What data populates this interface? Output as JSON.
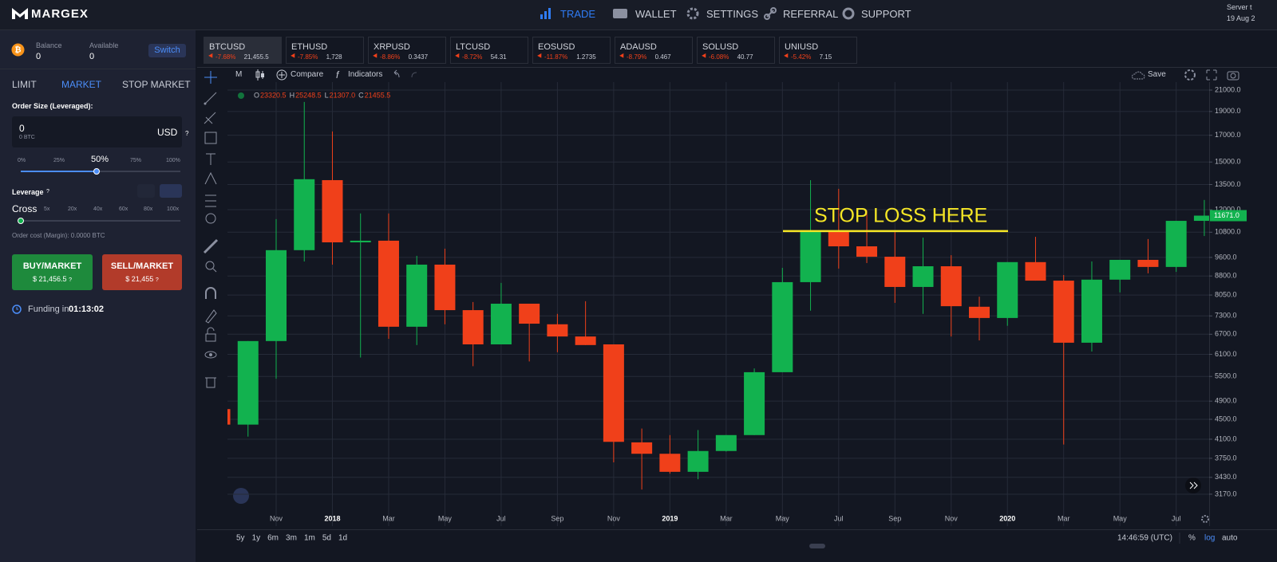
{
  "header": {
    "logo": "MARGEX",
    "nav": [
      "TRADE",
      "WALLET",
      "SETTINGS",
      "REFERRAL",
      "SUPPORT"
    ],
    "server_label": "Server t",
    "server_date": "19 Aug 2"
  },
  "account": {
    "balance_label": "Balance",
    "balance": "0",
    "available_label": "Available",
    "available": "0",
    "switch": "Switch"
  },
  "order": {
    "tabs": [
      "LIMIT",
      "MARKET",
      "STOP MARKET"
    ],
    "size_label": "Order Size (Leveraged):",
    "size": "0",
    "size_btc": "0 BTC",
    "currency": "USD",
    "help": "?",
    "size_marks": [
      "0%",
      "25%",
      "50%",
      "75%",
      "100%"
    ],
    "leverage_label": "Leverage",
    "leverage_marks": [
      "Cross",
      "5x",
      "20x",
      "40x",
      "60x",
      "80x",
      "100x"
    ],
    "order_cost": "Order cost (Margin): 0.0000 BTC",
    "buy": "BUY/MARKET",
    "buy_price": "$ 21,456.5",
    "sell": "SELL/MARKET",
    "sell_price": "$ 21,455",
    "funding_label": "Funding in",
    "funding_time": "01:13:02"
  },
  "tickers": [
    {
      "symbol": "BTCUSD",
      "change": "-7.68%",
      "price": "21,455.5"
    },
    {
      "symbol": "ETHUSD",
      "change": "-7.85%",
      "price": "1,728"
    },
    {
      "symbol": "XRPUSD",
      "change": "-8.86%",
      "price": "0.3437"
    },
    {
      "symbol": "LTCUSD",
      "change": "-8.72%",
      "price": "54.31"
    },
    {
      "symbol": "EOSUSD",
      "change": "-11.87%",
      "price": "1.2735"
    },
    {
      "symbol": "ADAUSD",
      "change": "-8.79%",
      "price": "0.467"
    },
    {
      "symbol": "SOLUSD",
      "change": "-6.08%",
      "price": "40.77"
    },
    {
      "symbol": "UNIUSD",
      "change": "-5.42%",
      "price": "7.15"
    }
  ],
  "toolbar": {
    "interval": "M",
    "compare": "Compare",
    "indicators": "Indicators",
    "save": "Save"
  },
  "legend": {
    "ohlc": [
      {
        "label": "O",
        "value": "23320.5"
      },
      {
        "label": "H",
        "value": "25248.5"
      },
      {
        "label": "L",
        "value": "21307.0"
      },
      {
        "label": "C",
        "value": "21455.5"
      }
    ]
  },
  "chart_data": {
    "type": "candlestick",
    "categories": [
      null,
      null,
      "Nov",
      null,
      "2018",
      null,
      "Mar",
      null,
      "May",
      null,
      "Jul",
      null,
      "Sep",
      null,
      "Nov",
      null,
      "2019",
      null,
      "Mar",
      null,
      "May",
      null,
      "Jul",
      null,
      "Sep",
      null,
      "Nov",
      null,
      "2020",
      null,
      "Mar",
      null,
      "May",
      null,
      "Jul",
      null
    ],
    "open": [
      4720,
      4390,
      6490,
      9930,
      13780,
      10300,
      10380,
      6940,
      9280,
      7500,
      6390,
      7730,
      7020,
      6630,
      6390,
      4040,
      3830,
      3520,
      3880,
      4180,
      5610,
      8550,
      10860,
      10110,
      9630,
      8360,
      9210,
      7620,
      7230,
      9390,
      8610,
      6440,
      8650,
      9490,
      9180,
      11390
    ],
    "high": [
      4720,
      6490,
      11480,
      19870,
      17310,
      11790,
      11790,
      9670,
      10000,
      7790,
      8520,
      7730,
      7370,
      7820,
      6390,
      4310,
      4180,
      4280,
      4180,
      5710,
      9140,
      13780,
      13230,
      11960,
      10860,
      10530,
      9700,
      7990,
      9390,
      10570,
      8840,
      9420,
      9490,
      10460,
      11390,
      12560
    ],
    "low": [
      4390,
      4150,
      5440,
      9420,
      9280,
      6010,
      6560,
      6370,
      7020,
      5770,
      6390,
      5900,
      6160,
      6370,
      3680,
      3240,
      3490,
      3400,
      3870,
      4180,
      5610,
      7480,
      9110,
      9350,
      7760,
      7370,
      6630,
      6510,
      6970,
      8610,
      4000,
      6180,
      8150,
      8910,
      8970,
      10610
    ],
    "close": [
      4390,
      6490,
      9930,
      13840,
      10300,
      10380,
      6940,
      9280,
      7500,
      6390,
      7730,
      7040,
      6630,
      6370,
      4050,
      3830,
      3520,
      3880,
      4180,
      5610,
      8550,
      10860,
      10110,
      9630,
      8360,
      9210,
      7640,
      7230,
      9390,
      8610,
      6440,
      8650,
      9490,
      9180,
      11390,
      11671
    ],
    "up_color": "#12b24f",
    "down_color": "#f0401a",
    "log_scale": true,
    "grid": true,
    "ylim": [
      2730,
      21800
    ],
    "yticks": [
      {
        "value": 21000,
        "label": "21000.0"
      },
      {
        "value": 19000,
        "label": "19000.0"
      },
      {
        "value": 17000,
        "label": "17000.0"
      },
      {
        "value": 15000,
        "label": "15000.0"
      },
      {
        "value": 13500,
        "label": "13500.0"
      },
      {
        "value": 12000,
        "label": "12000.0"
      },
      {
        "value": 10800,
        "label": "10800.0"
      },
      {
        "value": 9600,
        "label": "9600.0"
      },
      {
        "value": 8800,
        "label": "8800.0"
      },
      {
        "value": 8050,
        "label": "8050.0"
      },
      {
        "value": 7300,
        "label": "7300.0"
      },
      {
        "value": 6700,
        "label": "6700.0"
      },
      {
        "value": 6100,
        "label": "6100.0"
      },
      {
        "value": 5500,
        "label": "5500.0"
      },
      {
        "value": 4900,
        "label": "4900.0"
      },
      {
        "value": 4500,
        "label": "4500.0"
      },
      {
        "value": 4100,
        "label": "4100.0"
      },
      {
        "value": 3750,
        "label": "3750.0"
      },
      {
        "value": 3430,
        "label": "3430.0"
      },
      {
        "value": 3170,
        "label": "3170.0"
      }
    ],
    "last_price": {
      "value": 11671,
      "label": "11671.0"
    },
    "annotation": {
      "text": "STOP LOSS HERE",
      "value": 10860,
      "color": "#f5e625"
    }
  },
  "bottom_bar": {
    "ranges": [
      "5y",
      "1y",
      "6m",
      "3m",
      "1m",
      "5d",
      "1d"
    ],
    "time": "14:46:59 (UTC)",
    "percent": "%",
    "log": "log",
    "auto": "auto"
  }
}
